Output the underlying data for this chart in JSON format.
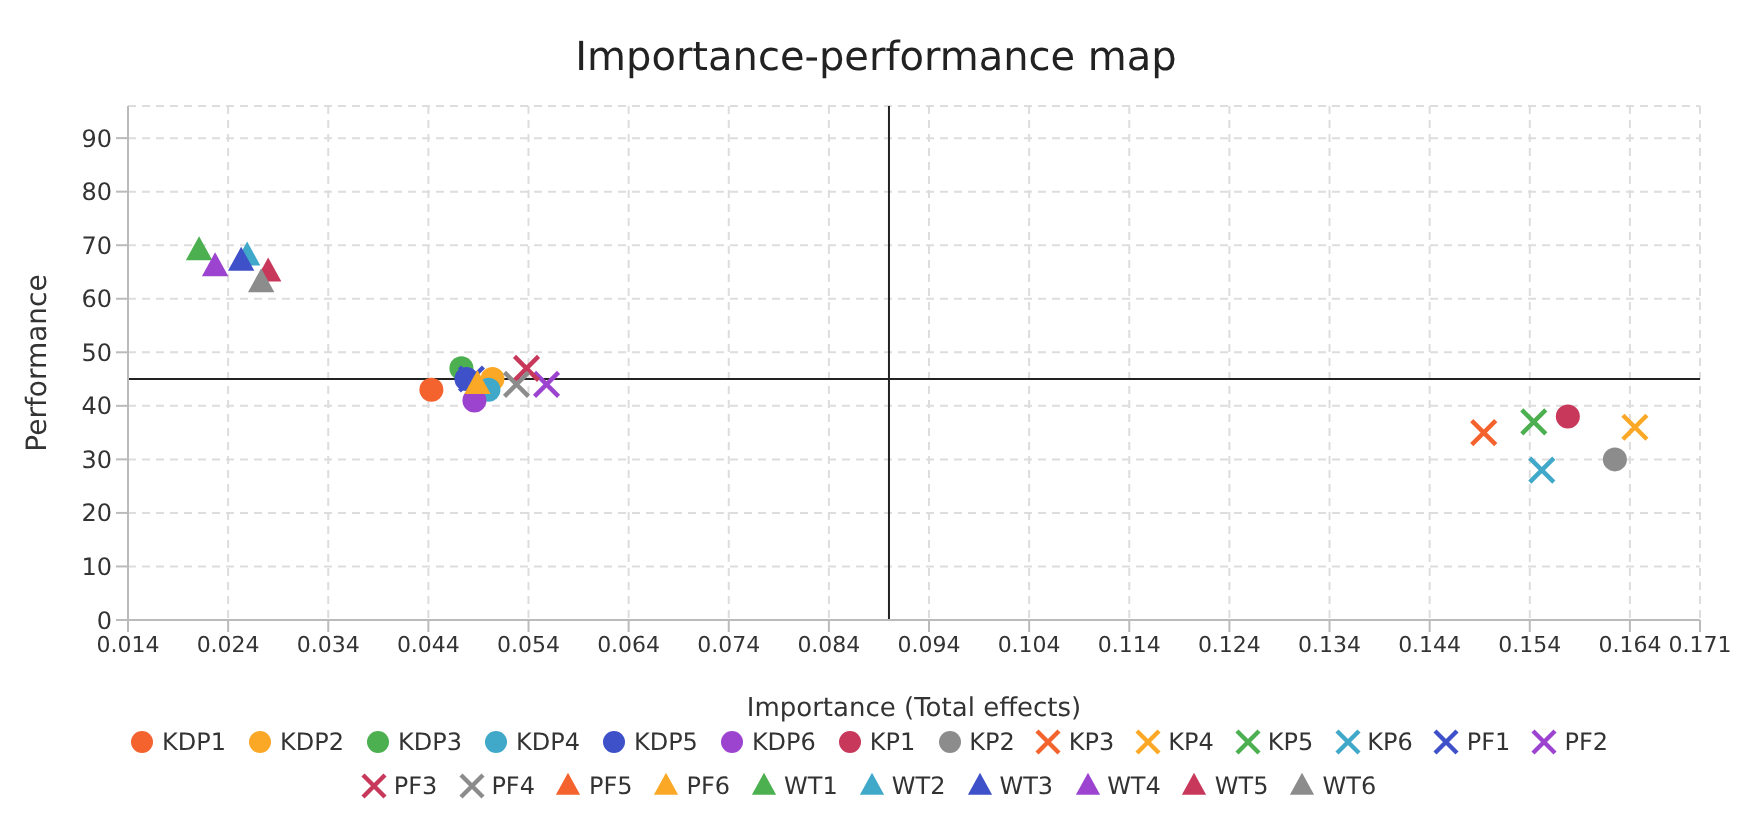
{
  "chart_data": {
    "type": "scatter",
    "title": "Importance-performance map",
    "xlabel": "Importance (Total effects)",
    "ylabel": "Performance",
    "xlim": [
      0.014,
      0.171
    ],
    "xticks": [
      0.014,
      0.024,
      0.034,
      0.044,
      0.054,
      0.064,
      0.074,
      0.084,
      0.094,
      0.104,
      0.114,
      0.124,
      0.134,
      0.144,
      0.154,
      0.164,
      0.171
    ],
    "ylim": [
      0,
      96
    ],
    "yticks": [
      0,
      10,
      20,
      30,
      40,
      50,
      60,
      70,
      80,
      90
    ],
    "grid": true,
    "legend": "bottom",
    "ref_lines": [
      {
        "axis": "x",
        "value": 0.09,
        "color": "#222222"
      },
      {
        "axis": "y",
        "value": 45,
        "color": "#222222"
      }
    ],
    "series": [
      {
        "name": "KDP1",
        "color": "#f4622e",
        "marker": "circle",
        "x": [
          0.0443
        ],
        "values": [
          43
        ]
      },
      {
        "name": "KDP2",
        "color": "#fba826",
        "marker": "circle",
        "x": [
          0.0504
        ],
        "values": [
          45
        ]
      },
      {
        "name": "KDP3",
        "color": "#4caf50",
        "marker": "circle",
        "x": [
          0.0473
        ],
        "values": [
          47
        ]
      },
      {
        "name": "KDP4",
        "color": "#40a8c8",
        "marker": "circle",
        "x": [
          0.05
        ],
        "values": [
          43
        ]
      },
      {
        "name": "KDP5",
        "color": "#3f51c8",
        "marker": "circle",
        "x": [
          0.0478
        ],
        "values": [
          45
        ]
      },
      {
        "name": "KDP6",
        "color": "#9c44d0",
        "marker": "circle",
        "x": [
          0.0486
        ],
        "values": [
          41
        ]
      },
      {
        "name": "KP1",
        "color": "#c8385a",
        "marker": "circle",
        "x": [
          0.1578
        ],
        "values": [
          38
        ]
      },
      {
        "name": "KP2",
        "color": "#8c8c8c",
        "marker": "circle",
        "x": [
          0.1625
        ],
        "values": [
          30
        ]
      },
      {
        "name": "KP3",
        "color": "#f4622e",
        "marker": "cross",
        "x": [
          0.1494
        ],
        "values": [
          35
        ]
      },
      {
        "name": "KP4",
        "color": "#fba826",
        "marker": "cross",
        "x": [
          0.1645
        ],
        "values": [
          36
        ]
      },
      {
        "name": "KP5",
        "color": "#4caf50",
        "marker": "cross",
        "x": [
          0.1544
        ],
        "values": [
          37
        ]
      },
      {
        "name": "KP6",
        "color": "#40a8c8",
        "marker": "cross",
        "x": [
          0.1552
        ],
        "values": [
          28
        ]
      },
      {
        "name": "PF1",
        "color": "#3f51c8",
        "marker": "cross",
        "x": [
          0.0483
        ],
        "values": [
          45
        ]
      },
      {
        "name": "PF2",
        "color": "#9c44d0",
        "marker": "cross",
        "x": [
          0.0558
        ],
        "values": [
          44
        ]
      },
      {
        "name": "PF3",
        "color": "#c8385a",
        "marker": "cross",
        "x": [
          0.0538
        ],
        "values": [
          47
        ]
      },
      {
        "name": "PF4",
        "color": "#8c8c8c",
        "marker": "cross",
        "x": [
          0.0528
        ],
        "values": [
          44
        ]
      },
      {
        "name": "PF5",
        "color": "#f4622e",
        "marker": "triangle",
        "x": [
          null
        ],
        "values": [
          null
        ]
      },
      {
        "name": "PF6",
        "color": "#fba826",
        "marker": "triangle",
        "x": [
          0.0489
        ],
        "values": [
          44
        ]
      },
      {
        "name": "WT1",
        "color": "#4caf50",
        "marker": "triangle",
        "x": [
          0.0211
        ],
        "values": [
          69
        ]
      },
      {
        "name": "WT2",
        "color": "#40a8c8",
        "marker": "triangle",
        "x": [
          0.0259
        ],
        "values": [
          68
        ]
      },
      {
        "name": "WT3",
        "color": "#3f51c8",
        "marker": "triangle",
        "x": [
          0.0253
        ],
        "values": [
          67
        ]
      },
      {
        "name": "WT4",
        "color": "#9c44d0",
        "marker": "triangle",
        "x": [
          0.0227
        ],
        "values": [
          66
        ]
      },
      {
        "name": "WT5",
        "color": "#c8385a",
        "marker": "triangle",
        "x": [
          0.028
        ],
        "values": [
          65
        ]
      },
      {
        "name": "WT6",
        "color": "#8c8c8c",
        "marker": "triangle",
        "x": [
          0.0273
        ],
        "values": [
          63
        ]
      }
    ]
  }
}
